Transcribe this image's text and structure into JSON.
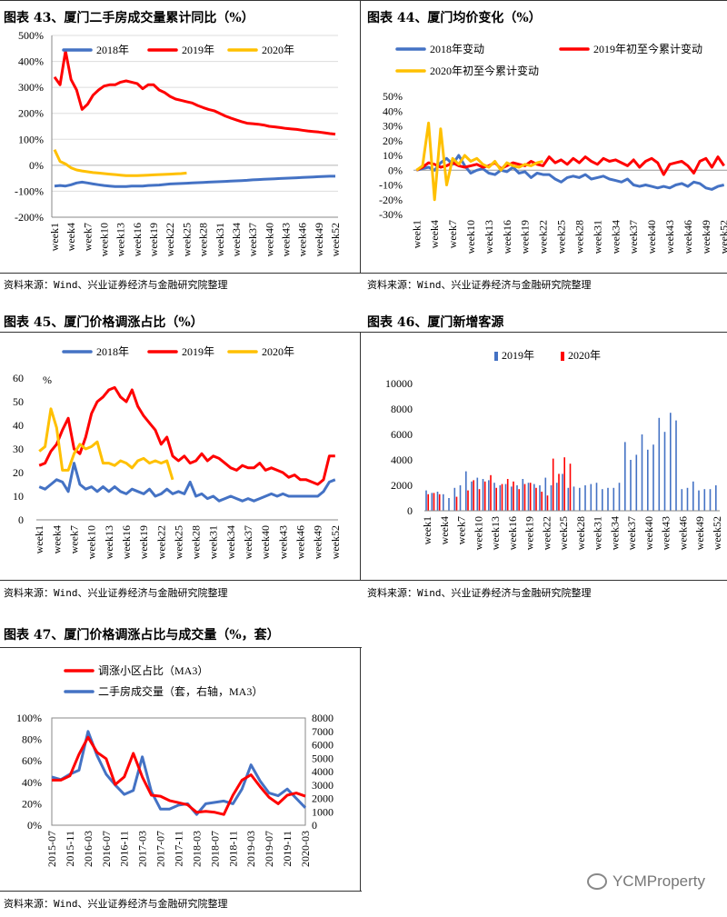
{
  "panels": [
    {
      "title": "图表 43、厦门二手房成交量累计同比（%）",
      "source": "资料来源：Wind、兴业证券经济与金融研究院整理"
    },
    {
      "title": "图表 44、厦门均价变化（%）",
      "source": "资料来源：Wind、兴业证券经济与金融研究院整理"
    },
    {
      "title": "图表 45、厦门价格调涨占比（%）",
      "source": "资料来源：Wind、兴业证券经济与金融研究院整理"
    },
    {
      "title": "图表 46、厦门新增客源",
      "source": "资料来源：Wind、兴业证券经济与金融研究院整理"
    },
    {
      "title": "图表 47、厦门价格调涨占比与成交量（%，套）",
      "source": "资料来源：Wind、兴业证券经济与金融研究院整理"
    }
  ],
  "watermark": "YCMProperty",
  "chart_data": [
    {
      "type": "line",
      "title": "图表 43、厦门二手房成交量累计同比（%）",
      "x_tick_labels": [
        "week1",
        "week4",
        "week7",
        "week10",
        "week13",
        "week16",
        "week19",
        "week22",
        "week25",
        "week28",
        "week31",
        "week34",
        "week37",
        "week40",
        "week43",
        "week46",
        "week49",
        "week52"
      ],
      "y_tick_labels": [
        "-200%",
        "-100%",
        "0%",
        "100%",
        "200%",
        "300%",
        "400%",
        "500%"
      ],
      "ylim": [
        -200,
        500
      ],
      "legend_position": "top",
      "colors": {
        "2018年": "#4472C4",
        "2019年": "#FF0000",
        "2020年": "#FFC000"
      },
      "series": [
        {
          "name": "2018年",
          "values": [
            -80,
            -78,
            -80,
            -75,
            -68,
            -65,
            -68,
            -72,
            -75,
            -78,
            -80,
            -82,
            -82,
            -82,
            -80,
            -80,
            -80,
            -78,
            -77,
            -76,
            -74,
            -72,
            -71,
            -70,
            -69,
            -68,
            -67,
            -66,
            -65,
            -64,
            -63,
            -62,
            -61,
            -60,
            -59,
            -58,
            -56,
            -55,
            -54,
            -53,
            -52,
            -51,
            -50,
            -49,
            -48,
            -47,
            -46,
            -45,
            -44,
            -43,
            -42,
            -42
          ]
        },
        {
          "name": "2019年",
          "values": [
            340,
            310,
            440,
            330,
            290,
            215,
            235,
            270,
            290,
            305,
            310,
            310,
            320,
            325,
            320,
            315,
            295,
            310,
            310,
            290,
            280,
            265,
            255,
            250,
            245,
            240,
            230,
            222,
            215,
            210,
            200,
            190,
            182,
            175,
            168,
            162,
            160,
            158,
            155,
            150,
            148,
            145,
            142,
            140,
            138,
            135,
            132,
            130,
            128,
            125,
            122,
            120
          ]
        },
        {
          "name": "2020年",
          "values": [
            60,
            15,
            5,
            -10,
            -18,
            -22,
            -25,
            -28,
            -30,
            -32,
            -34,
            -36,
            -38,
            -40,
            -40,
            -40,
            -39,
            -38,
            -37,
            -36,
            -35,
            -34,
            -33,
            -32,
            -30
          ]
        }
      ]
    },
    {
      "type": "line",
      "title": "图表 44、厦门均价变化（%）",
      "x_tick_labels": [
        "week1",
        "week4",
        "week7",
        "week10",
        "week13",
        "week16",
        "week19",
        "week22",
        "week25",
        "week28",
        "week31",
        "week34",
        "week37",
        "week40",
        "week43",
        "week46",
        "week49",
        "week52"
      ],
      "y_tick_labels": [
        "-30%",
        "-20%",
        "-10%",
        "0%",
        "10%",
        "20%",
        "30%",
        "40%",
        "50%"
      ],
      "ylim": [
        -30,
        50
      ],
      "legend_position": "top",
      "colors": {
        "2018年变动": "#4472C4",
        "2019年初至今累计变动": "#FF0000",
        "2020年初至今累计变动": "#FFC000"
      },
      "series": [
        {
          "name": "2018年变动",
          "values": [
            0,
            1,
            2,
            0,
            5,
            8,
            4,
            10,
            3,
            -2,
            0,
            1,
            -2,
            -3,
            0,
            -1,
            2,
            -2,
            -1,
            -5,
            -2,
            -3,
            -3,
            -6,
            -8,
            -5,
            -4,
            -5,
            -3,
            -6,
            -5,
            -4,
            -6,
            -7,
            -8,
            -6,
            -10,
            -11,
            -10,
            -11,
            -12,
            -11,
            -12,
            -10,
            -9,
            -11,
            -8,
            -9,
            -12,
            -13,
            -11,
            -10
          ]
        },
        {
          "name": "2019年初至今累计变动",
          "values": [
            0,
            2,
            5,
            4,
            2,
            3,
            5,
            3,
            2,
            3,
            4,
            2,
            3,
            5,
            1,
            3,
            5,
            4,
            3,
            6,
            4,
            3,
            9,
            5,
            7,
            4,
            8,
            5,
            9,
            6,
            4,
            8,
            6,
            7,
            5,
            3,
            7,
            2,
            6,
            8,
            5,
            -3,
            4,
            5,
            6,
            3,
            -2,
            6,
            8,
            2,
            9,
            3
          ]
        },
        {
          "name": "2020年初至今累计变动",
          "values": [
            0,
            3,
            32,
            -20,
            28,
            -10,
            8,
            4,
            10,
            6,
            8,
            4,
            2,
            6,
            0,
            5,
            3,
            2,
            4,
            3,
            5,
            6
          ]
        }
      ]
    },
    {
      "type": "line",
      "title": "图表 45、厦门价格调涨占比（%）",
      "unit_label": "%",
      "x_tick_labels": [
        "week1",
        "week4",
        "week7",
        "week10",
        "week13",
        "week16",
        "week19",
        "week22",
        "week25",
        "week28",
        "week31",
        "week34",
        "week37",
        "week40",
        "week43",
        "week46",
        "week49",
        "week52"
      ],
      "y_tick_labels": [
        "0",
        "10",
        "20",
        "30",
        "40",
        "50",
        "60"
      ],
      "ylim": [
        0,
        60
      ],
      "legend_position": "top",
      "colors": {
        "2018年": "#4472C4",
        "2019年": "#FF0000",
        "2020年": "#FFC000"
      },
      "series": [
        {
          "name": "2018年",
          "values": [
            14,
            13,
            15,
            17,
            16,
            12,
            24,
            15,
            13,
            14,
            12,
            14,
            12,
            14,
            12,
            11,
            13,
            12,
            11,
            13,
            10,
            11,
            13,
            11,
            12,
            11,
            16,
            10,
            11,
            9,
            10,
            8,
            9,
            10,
            9,
            8,
            9,
            8,
            9,
            10,
            11,
            10,
            11,
            10,
            10,
            10,
            10,
            10,
            10,
            12,
            16,
            17
          ]
        },
        {
          "name": "2019年",
          "values": [
            23,
            24,
            29,
            32,
            38,
            43,
            30,
            28,
            35,
            45,
            50,
            52,
            55,
            56,
            52,
            50,
            55,
            48,
            44,
            41,
            38,
            32,
            35,
            27,
            25,
            27,
            24,
            25,
            28,
            25,
            27,
            26,
            24,
            22,
            21,
            23,
            22,
            22,
            24,
            21,
            22,
            21,
            20,
            18,
            19,
            17,
            17,
            16,
            15,
            17,
            27,
            27
          ]
        },
        {
          "name": "2020年",
          "values": [
            29,
            31,
            47,
            39,
            21,
            21,
            28,
            32,
            30,
            31,
            33,
            24,
            24,
            23,
            25,
            24,
            22,
            25,
            26,
            24,
            25,
            24,
            25,
            17
          ]
        }
      ]
    },
    {
      "type": "bar",
      "title": "图表 46、厦门新增客源",
      "x_tick_labels": [
        "week1",
        "week4",
        "week7",
        "week10",
        "week13",
        "week16",
        "week19",
        "week22",
        "week25",
        "week28",
        "week31",
        "week34",
        "week37",
        "week40",
        "week43",
        "week46",
        "week49",
        "week52"
      ],
      "y_tick_labels": [
        "0",
        "2000",
        "4000",
        "6000",
        "8000",
        "10000"
      ],
      "ylim": [
        0,
        10000
      ],
      "legend_position": "top",
      "colors": {
        "2019年": "#4472C4",
        "2020年": "#FF0000"
      },
      "series": [
        {
          "name": "2019年",
          "values": [
            1600,
            1400,
            1500,
            1300,
            1000,
            1800,
            2000,
            3100,
            2300,
            2600,
            2500,
            2400,
            2200,
            2000,
            2100,
            1900,
            2000,
            2500,
            2200,
            2100,
            2000,
            2600,
            2000,
            2200,
            2900,
            1800,
            1900,
            1800,
            2000,
            2100,
            2200,
            1700,
            1800,
            1800,
            2200,
            5400,
            4000,
            4400,
            6000,
            4800,
            5200,
            7300,
            6200,
            7700,
            7100,
            1700,
            1800,
            2300,
            1600,
            1700,
            1700,
            2000
          ]
        },
        {
          "name": "2020年",
          "values": [
            1300,
            1400,
            1300,
            0,
            0,
            1100,
            0,
            1600,
            2400,
            1700,
            2300,
            2800,
            1800,
            2100,
            2500,
            2300,
            1700,
            2100,
            2200,
            1800,
            1500,
            1200,
            4100,
            2900,
            4200,
            3700
          ]
        }
      ]
    },
    {
      "type": "line",
      "title": "图表 47、厦门价格调涨占比与成交量（%，套）",
      "x_tick_labels": [
        "2015-07",
        "2015-11",
        "2016-03",
        "2016-07",
        "2016-11",
        "2017-03",
        "2017-07",
        "2017-11",
        "2018-03",
        "2018-07",
        "2018-11",
        "2019-03",
        "2019-07",
        "2019-11",
        "2020-03"
      ],
      "y_left_tick_labels": [
        "0%",
        "20%",
        "40%",
        "60%",
        "80%",
        "100%"
      ],
      "y_right_tick_labels": [
        "0",
        "1000",
        "2000",
        "3000",
        "4000",
        "5000",
        "6000",
        "7000",
        "8000"
      ],
      "ylim": [
        0,
        100
      ],
      "y2lim": [
        0,
        8000
      ],
      "legend_position": "top-left",
      "colors": {
        "调涨小区占比（MA3）": "#FF0000",
        "二手房成交量（套，右轴，MA3）": "#4472C4"
      },
      "x": [
        "2015-07",
        "2015-09",
        "2015-11",
        "2016-01",
        "2016-03",
        "2016-05",
        "2016-07",
        "2016-09",
        "2016-11",
        "2017-01",
        "2017-03",
        "2017-05",
        "2017-07",
        "2017-09",
        "2017-11",
        "2018-01",
        "2018-03",
        "2018-05",
        "2018-07",
        "2018-09",
        "2018-11",
        "2019-01",
        "2019-03",
        "2019-05",
        "2019-07",
        "2019-09",
        "2019-11",
        "2020-01",
        "2020-03"
      ],
      "series": [
        {
          "name": "调涨小区占比（MA3）",
          "axis": "left",
          "values": [
            42,
            42,
            46,
            66,
            82,
            68,
            62,
            38,
            45,
            67,
            45,
            28,
            27,
            23,
            21,
            19,
            12,
            13,
            12,
            10,
            28,
            42,
            47,
            36,
            26,
            20,
            28,
            30,
            27
          ]
        },
        {
          "name": "二手房成交量（套，右轴，MA3）",
          "axis": "right",
          "values": [
            3600,
            3400,
            3800,
            4100,
            7000,
            5200,
            3800,
            3000,
            2300,
            2600,
            5100,
            2500,
            1200,
            1200,
            1500,
            1600,
            800,
            1600,
            1700,
            1800,
            1600,
            2700,
            4500,
            3300,
            2400,
            2200,
            2700,
            2000,
            1300
          ]
        }
      ]
    }
  ]
}
